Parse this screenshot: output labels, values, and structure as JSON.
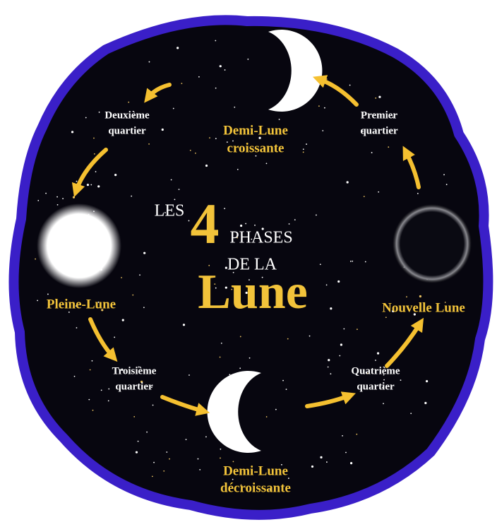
{
  "title": {
    "les": "LES",
    "number": "4",
    "phases": "PHASES",
    "de_la": "DE LA",
    "lune": "Lune"
  },
  "phases": [
    {
      "lines": [
        "Demi-Lune",
        "croissante"
      ]
    },
    {
      "lines": [
        "Nouvelle Lune"
      ]
    },
    {
      "lines": [
        "Demi-Lune",
        "décroissante"
      ]
    },
    {
      "lines": [
        "Pleine-Lune"
      ]
    }
  ],
  "transitions": [
    {
      "lines": [
        "Premier",
        "quartier"
      ]
    },
    {
      "lines": [
        "Quatrième",
        "quartier"
      ]
    },
    {
      "lines": [
        "Troisième",
        "quartier"
      ]
    },
    {
      "lines": [
        "Deuxième",
        "quartier"
      ]
    }
  ]
}
